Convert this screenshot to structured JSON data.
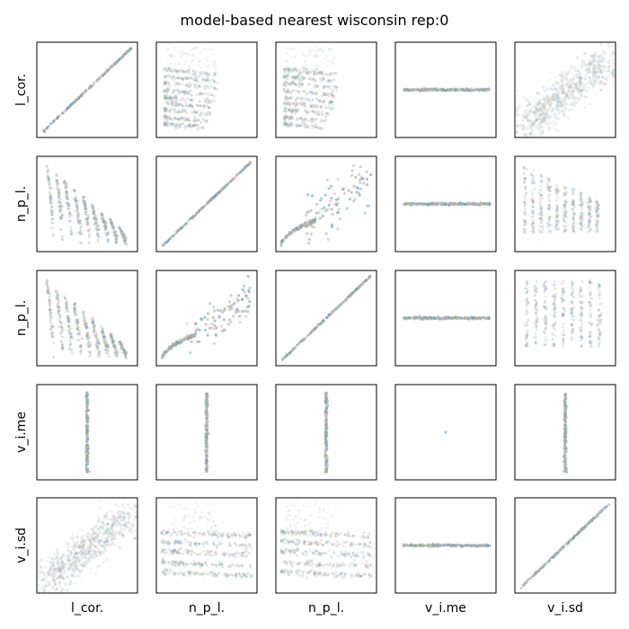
{
  "chart_data": {
    "type": "scatter",
    "title": "model-based nearest wisconsin rep:0",
    "variables": [
      "l_cor.",
      "n_p_l.",
      "n_p_l.",
      "v_i.me",
      "v_i.sd"
    ],
    "layout": "5x5 pairs scatter matrix",
    "grid": false,
    "axis_ticks": false,
    "point_colors": [
      "#8fbcd0",
      "#9aa88a",
      "#c9a3a8",
      "#7fa3b5",
      "#a8a8a8",
      "#b5c9a0",
      "#d9b8c4",
      "#6f9fb0"
    ],
    "panels": [
      [
        "diagonal identity",
        "horizontal stripes decreasing",
        "horizontal stripes decreasing",
        "flat line at constant",
        "positive correlation cloud"
      ],
      [
        "descending spiky bands",
        "diagonal identity",
        "curved arc rising",
        "flat line at constant",
        "descending vertical strips"
      ],
      [
        "descending spiky bands",
        "curved arc rising",
        "diagonal identity",
        "flat line at constant",
        "vertical strips"
      ],
      [
        "vertical line",
        "vertical line",
        "vertical line",
        "single point",
        "vertical line"
      ],
      [
        "positive correlation cloud",
        "horizontal stripes",
        "horizontal stripes",
        "flat line at constant",
        "diagonal identity"
      ]
    ]
  }
}
